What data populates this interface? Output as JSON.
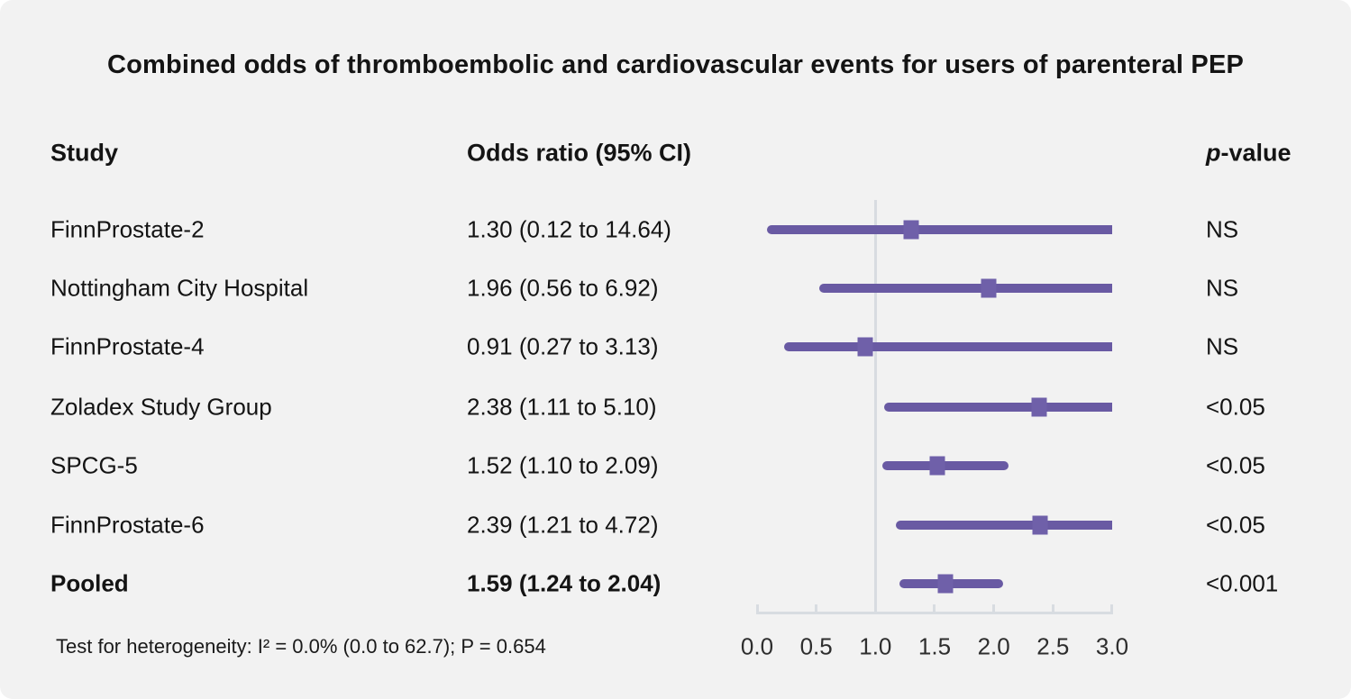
{
  "title": "Combined odds of thromboembolic and cardiovascular events for users of parenteral PEP",
  "columns": {
    "study": "Study",
    "odds_ratio": "Odds ratio (95% CI)",
    "p_value_italic": "p",
    "p_value_rest": "-value"
  },
  "chart_data": {
    "type": "forest",
    "title": "Combined odds of thromboembolic and cardiovascular events for users of parenteral PEP",
    "xlim": [
      0.0,
      3.0
    ],
    "x_ticks": [
      "0.0",
      "0.5",
      "1.0",
      "1.5",
      "2.0",
      "2.5",
      "3.0"
    ],
    "x_tick_values": [
      0.0,
      0.5,
      1.0,
      1.5,
      2.0,
      2.5,
      3.0
    ],
    "reference_line": 1.0,
    "grid": false,
    "rows": [
      {
        "study": "FinnProstate-2",
        "or": 1.3,
        "ci_low": 0.12,
        "ci_high": 14.64,
        "or_label": "1.30 (0.12 to 14.64)",
        "p_value": "NS",
        "bold": false
      },
      {
        "study": "Nottingham City Hospital",
        "or": 1.96,
        "ci_low": 0.56,
        "ci_high": 6.92,
        "or_label": "1.96 (0.56 to 6.92)",
        "p_value": "NS",
        "bold": false
      },
      {
        "study": "FinnProstate-4",
        "or": 0.91,
        "ci_low": 0.27,
        "ci_high": 3.13,
        "or_label": "0.91 (0.27 to 3.13)",
        "p_value": "NS",
        "bold": false
      },
      {
        "study": "Zoladex Study Group",
        "or": 2.38,
        "ci_low": 1.11,
        "ci_high": 5.1,
        "or_label": "2.38 (1.11 to 5.10)",
        "p_value": "<0.05",
        "bold": false
      },
      {
        "study": "SPCG-5",
        "or": 1.52,
        "ci_low": 1.1,
        "ci_high": 2.09,
        "or_label": "1.52 (1.10 to 2.09)",
        "p_value": "<0.05",
        "bold": false
      },
      {
        "study": "FinnProstate-6",
        "or": 2.39,
        "ci_low": 1.21,
        "ci_high": 4.72,
        "or_label": "2.39 (1.21 to 4.72)",
        "p_value": "<0.05",
        "bold": false
      },
      {
        "study": "Pooled",
        "or": 1.59,
        "ci_low": 1.24,
        "ci_high": 2.04,
        "or_label": "1.59 (1.24 to 2.04)",
        "p_value": "<0.001",
        "bold": true
      }
    ],
    "footnote": "Test for heterogeneity: I² = 0.0% (0.0 to 62.7); P = 0.654"
  },
  "colors": {
    "background": "#f2f2f2",
    "ci_line": "#695aa3",
    "marker": "#6f60a9",
    "axis": "#d8dce1",
    "text": "#141414"
  }
}
